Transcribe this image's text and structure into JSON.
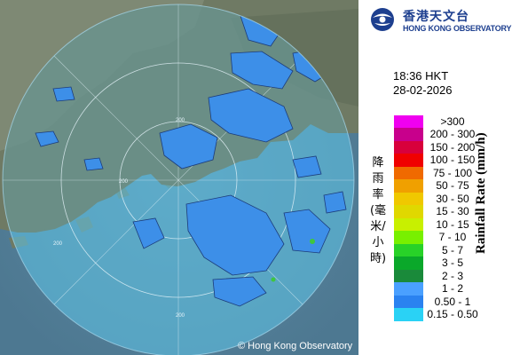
{
  "logo": {
    "zh": "香港天文台",
    "en": "HONG KONG OBSERVATORY"
  },
  "timestamp": {
    "time": "18:36 HKT",
    "date": "28-02-2026"
  },
  "map": {
    "copyright": "© Hong Kong Observatory",
    "range_labels": [
      "200",
      "200",
      "200",
      "200"
    ]
  },
  "legend": {
    "unit_en": "Rainfall Rate (mm/h)",
    "unit_zh": "降雨率(毫米/小時)",
    "items": [
      {
        "label": ">300",
        "color": "#f000f0"
      },
      {
        "label": "200 - 300",
        "color": "#c8008c"
      },
      {
        "label": "150 - 200",
        "color": "#d8003c"
      },
      {
        "label": "100 - 150",
        "color": "#f00000"
      },
      {
        "label": "75 - 100",
        "color": "#f06a00"
      },
      {
        "label": "50 - 75",
        "color": "#f0a000"
      },
      {
        "label": "30 - 50",
        "color": "#f0c800"
      },
      {
        "label": "15 - 30",
        "color": "#e0d800"
      },
      {
        "label": "10 - 15",
        "color": "#c8f000"
      },
      {
        "label": "7 - 10",
        "color": "#78f000"
      },
      {
        "label": "5 - 7",
        "color": "#28d228"
      },
      {
        "label": "3 - 5",
        "color": "#0aa82a"
      },
      {
        "label": "2 - 3",
        "color": "#1a8a3a"
      },
      {
        "label": "1 - 2",
        "color": "#4aa0ff"
      },
      {
        "label": "0.50 - 1",
        "color": "#2a82f0"
      },
      {
        "label": "0.15 - 0.50",
        "color": "#2ad2f5"
      }
    ]
  }
}
